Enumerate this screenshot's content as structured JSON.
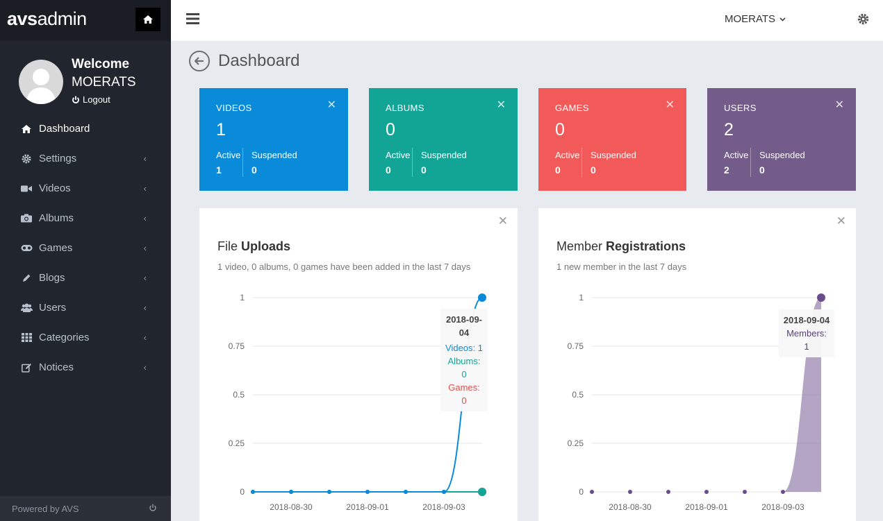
{
  "brand": {
    "bold": "avs",
    "light": "admin"
  },
  "user": {
    "welcome": "Welcome",
    "name": "MOERATS",
    "logout": "Logout"
  },
  "nav": [
    {
      "label": "Dashboard",
      "icon": "home-icon",
      "active": true
    },
    {
      "label": "Settings",
      "icon": "gear-icon"
    },
    {
      "label": "Videos",
      "icon": "video-camera-icon"
    },
    {
      "label": "Albums",
      "icon": "camera-icon"
    },
    {
      "label": "Games",
      "icon": "gamepad-icon"
    },
    {
      "label": "Blogs",
      "icon": "pencil-icon"
    },
    {
      "label": "Users",
      "icon": "users-icon"
    },
    {
      "label": "Categories",
      "icon": "grid-icon"
    },
    {
      "label": "Notices",
      "icon": "edit-icon"
    }
  ],
  "footer": {
    "text": "Powered by AVS"
  },
  "header": {
    "user_menu": "MOERATS"
  },
  "page": {
    "title": "Dashboard"
  },
  "stats": [
    {
      "label": "VIDEOS",
      "count": "1",
      "active_label": "Active",
      "active": "1",
      "suspended_label": "Suspended",
      "suspended": "0",
      "color": "#0a8bd9"
    },
    {
      "label": "ALBUMS",
      "count": "0",
      "active_label": "Active",
      "active": "0",
      "suspended_label": "Suspended",
      "suspended": "0",
      "color": "#12a596"
    },
    {
      "label": "GAMES",
      "count": "0",
      "active_label": "Active",
      "active": "0",
      "suspended_label": "Suspended",
      "suspended": "0",
      "color": "#f25a5a"
    },
    {
      "label": "USERS",
      "count": "2",
      "active_label": "Active",
      "active": "2",
      "suspended_label": "Suspended",
      "suspended": "0",
      "color": "#735c89"
    }
  ],
  "uploads": {
    "title_light": "File ",
    "title_bold": "Uploads",
    "subtitle": "1 video, 0 albums, 0 games have been added in the last 7 days",
    "tooltip": {
      "date": "2018-09-04",
      "videos": "Videos: 1",
      "albums": "Albums: 0",
      "games": "Games: 0"
    }
  },
  "registrations": {
    "title_light": "Member ",
    "title_bold": "Registrations",
    "subtitle": "1 new member in the last 7 days",
    "tooltip": {
      "date": "2018-09-04",
      "members": "Members: 1"
    }
  },
  "chart_data": [
    {
      "type": "line",
      "x": [
        "2018-08-29",
        "2018-08-30",
        "2018-08-31",
        "2018-09-01",
        "2018-09-02",
        "2018-09-03",
        "2018-09-04"
      ],
      "x_tick_labels": [
        "2018-08-30",
        "2018-09-01",
        "2018-09-03"
      ],
      "y_ticks": [
        "0",
        "0.25",
        "0.5",
        "0.75",
        "1"
      ],
      "ylim": [
        0,
        1
      ],
      "series": [
        {
          "name": "Videos",
          "values": [
            0,
            0,
            0,
            0,
            0,
            0,
            1
          ],
          "color": "#0a8bd9"
        },
        {
          "name": "Albums",
          "values": [
            0,
            0,
            0,
            0,
            0,
            0,
            0
          ],
          "color": "#12a596"
        },
        {
          "name": "Games",
          "values": [
            0,
            0,
            0,
            0,
            0,
            0,
            0
          ],
          "color": "#e05050"
        }
      ],
      "grid": true
    },
    {
      "type": "area",
      "x": [
        "2018-08-29",
        "2018-08-30",
        "2018-08-31",
        "2018-09-01",
        "2018-09-02",
        "2018-09-03",
        "2018-09-04"
      ],
      "x_tick_labels": [
        "2018-08-30",
        "2018-09-01",
        "2018-09-03"
      ],
      "y_ticks": [
        "0",
        "0.25",
        "0.5",
        "0.75",
        "1"
      ],
      "ylim": [
        0,
        1
      ],
      "series": [
        {
          "name": "Members",
          "values": [
            0,
            0,
            0,
            0,
            0,
            0,
            1
          ],
          "color": "#6a4c8c"
        }
      ],
      "grid": true
    }
  ]
}
